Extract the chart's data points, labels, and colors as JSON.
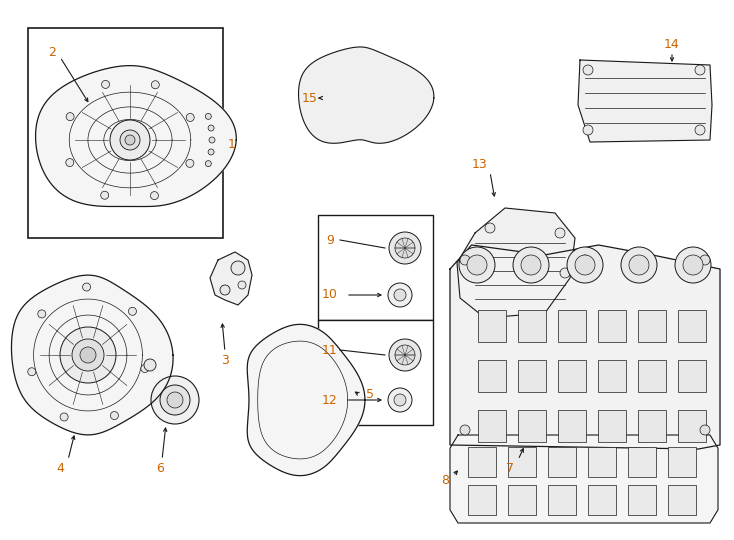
{
  "bg_color": "#ffffff",
  "line_color": "#1a1a1a",
  "label_color": "#cc6600",
  "arrow_color": "#1a1a1a",
  "fig_width": 7.34,
  "fig_height": 5.4,
  "dpi": 100
}
